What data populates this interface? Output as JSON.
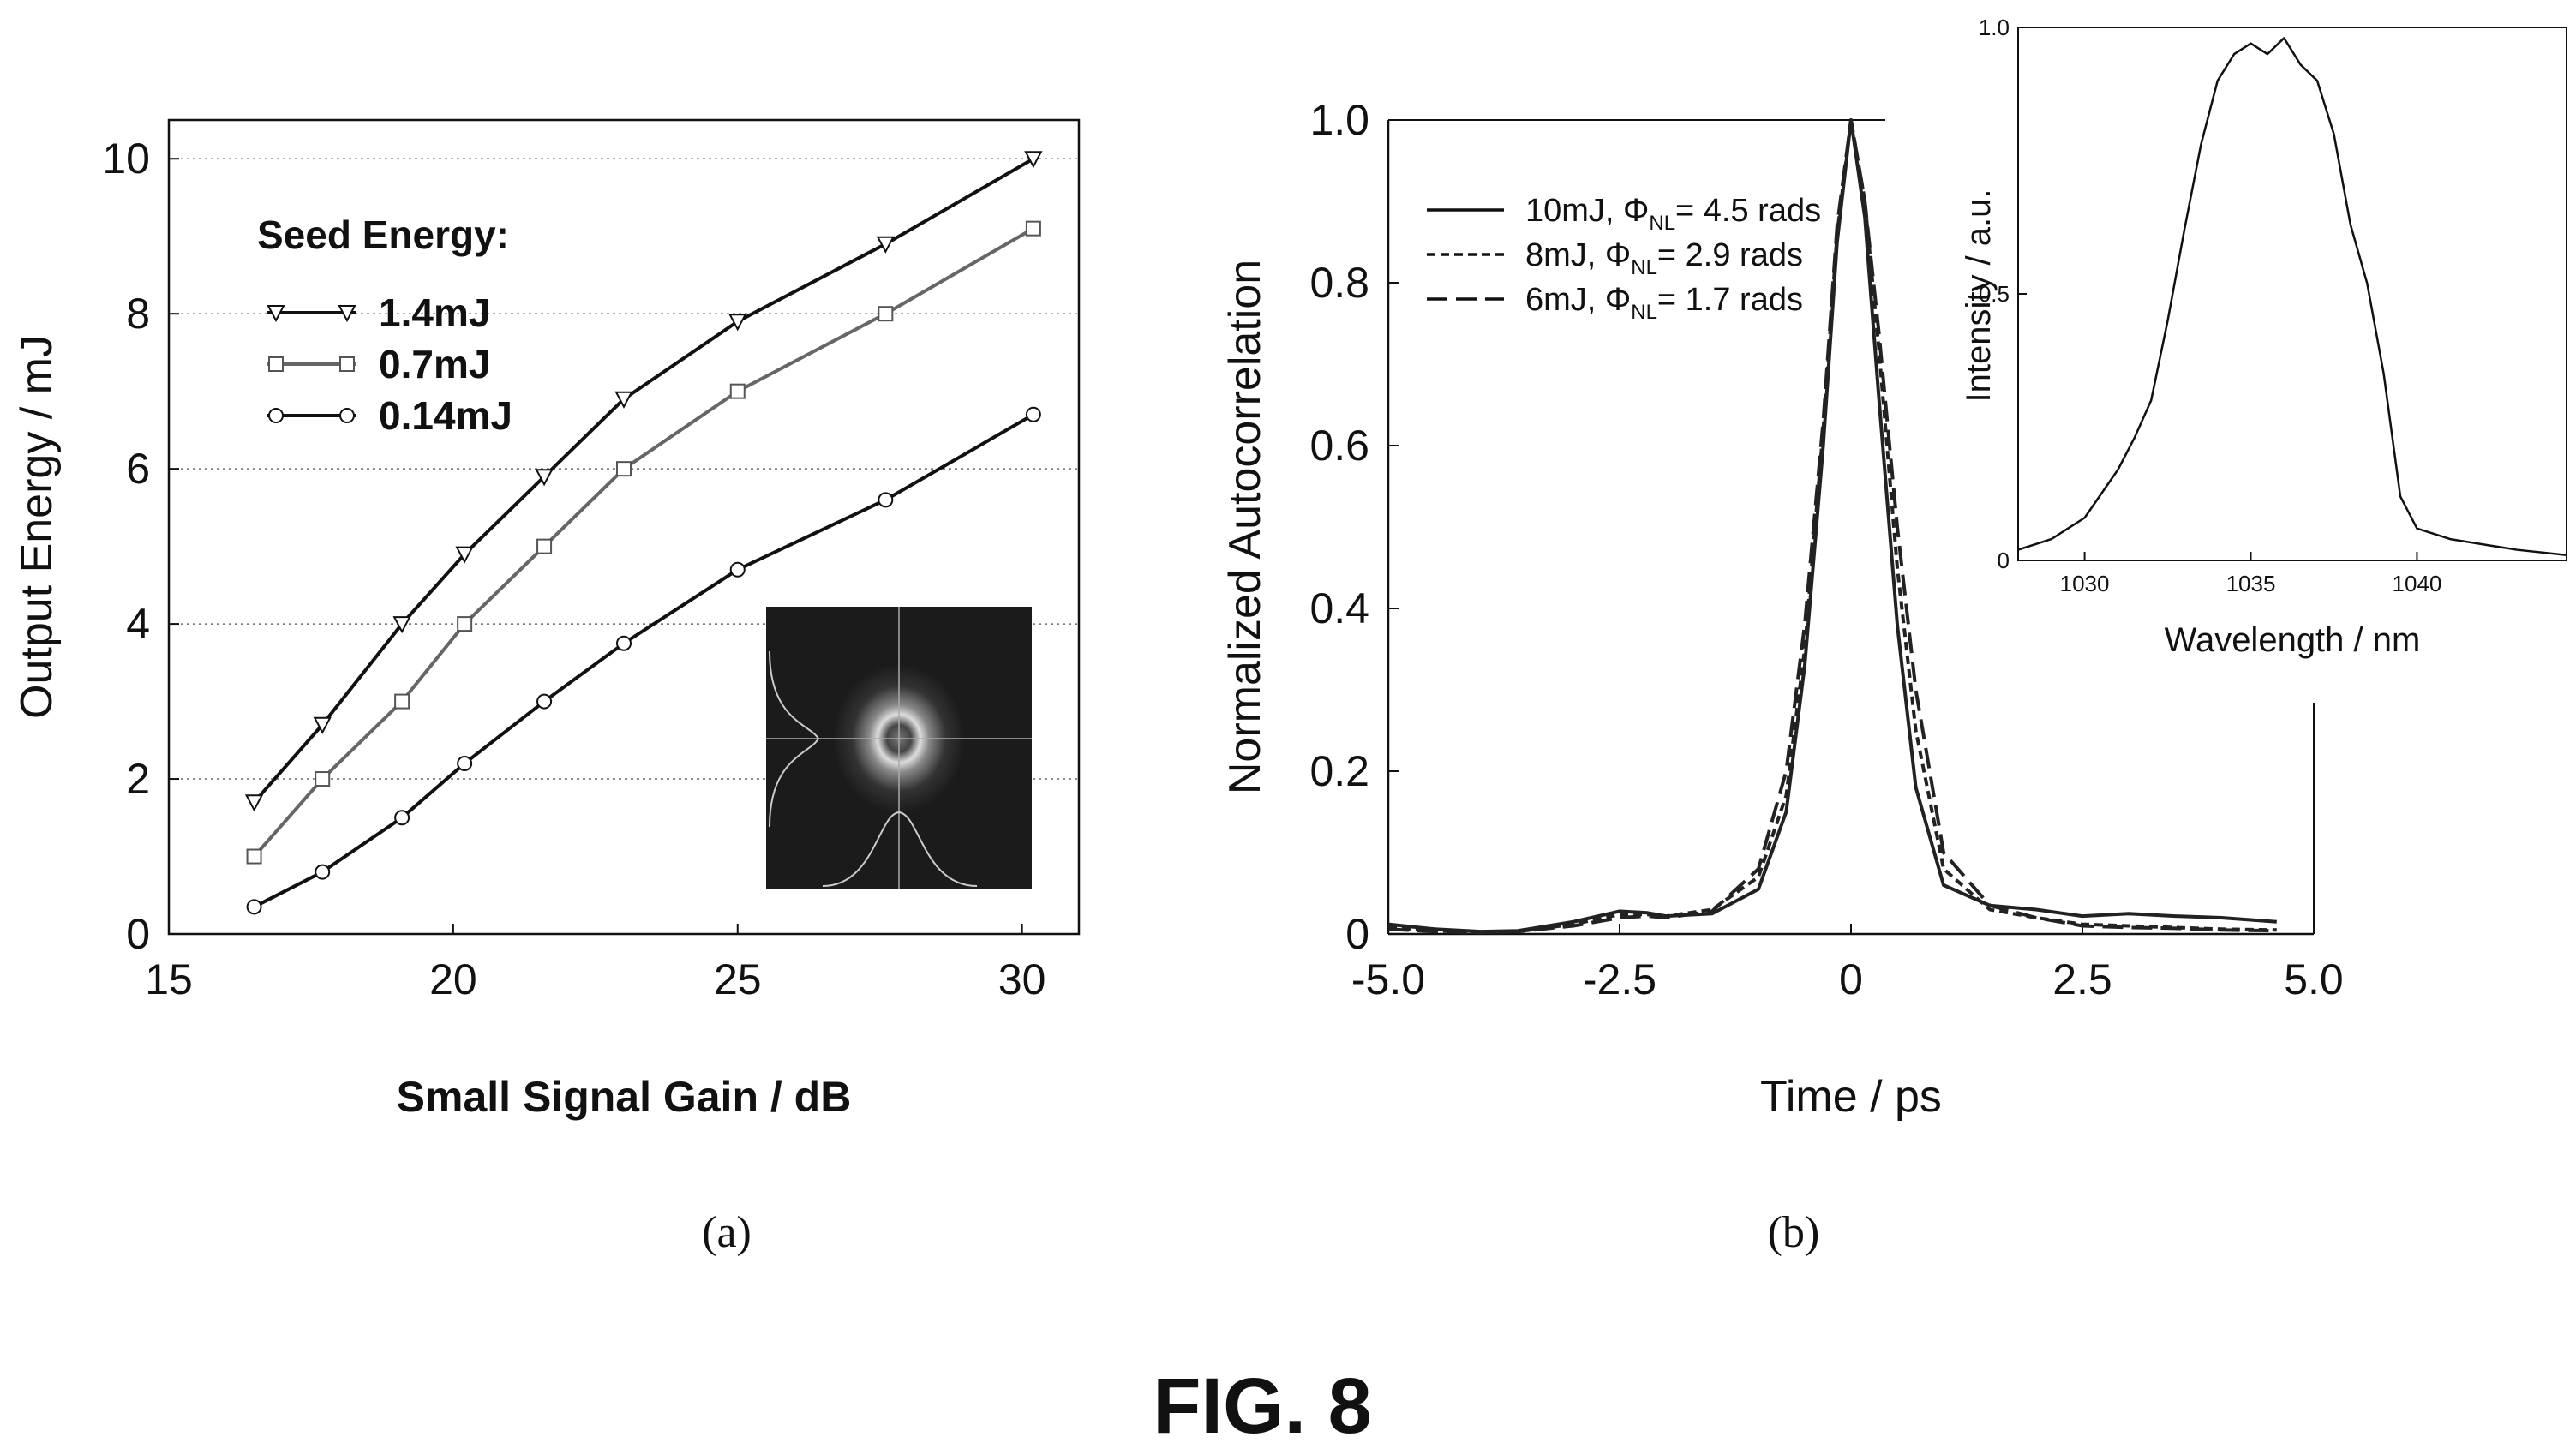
{
  "figure_title": "FIG. 8",
  "captions": {
    "a": "(a)",
    "b": "(b)"
  },
  "chart_data": [
    {
      "id": "a",
      "type": "line",
      "xlabel": "Small Signal Gain / dB",
      "ylabel": "Output Energy / mJ",
      "xlim": [
        15,
        31
      ],
      "ylim": [
        0,
        10.5
      ],
      "xticks": [
        15,
        20,
        25,
        30
      ],
      "yticks": [
        0,
        2,
        4,
        6,
        8,
        10
      ],
      "grid": true,
      "legend_title": "Seed Energy:",
      "legend_position": "top-left",
      "series": [
        {
          "name": "1.4mJ",
          "marker": "triangle-down",
          "color": "#111111",
          "x": [
            16.5,
            17.7,
            19.1,
            20.2,
            21.6,
            23.0,
            25.0,
            27.6,
            30.2
          ],
          "y": [
            1.7,
            2.7,
            4.0,
            4.9,
            5.9,
            6.9,
            7.9,
            8.9,
            10.0
          ]
        },
        {
          "name": "0.7mJ",
          "marker": "square",
          "color": "#666666",
          "x": [
            16.5,
            17.7,
            19.1,
            20.2,
            21.6,
            23.0,
            25.0,
            27.6,
            30.2
          ],
          "y": [
            1.0,
            2.0,
            3.0,
            4.0,
            5.0,
            6.0,
            7.0,
            8.0,
            9.1
          ]
        },
        {
          "name": "0.14mJ",
          "marker": "circle",
          "color": "#111111",
          "x": [
            16.5,
            17.7,
            19.1,
            20.2,
            21.6,
            23.0,
            25.0,
            27.6,
            30.2
          ],
          "y": [
            0.35,
            0.8,
            1.5,
            2.2,
            3.0,
            3.75,
            4.7,
            5.6,
            6.7
          ]
        }
      ],
      "inset": "beam-profile-image"
    },
    {
      "id": "b",
      "type": "line",
      "xlabel": "Time / ps",
      "ylabel": "Normalized Autocorrelation",
      "xlim": [
        -5.0,
        5.0
      ],
      "ylim": [
        0,
        1.0
      ],
      "xtick_labels": [
        "-5.0",
        "-2.5",
        "0",
        "2.5",
        "5.0"
      ],
      "ytick_labels": [
        "0",
        "0.2",
        "0.4",
        "0.6",
        "0.8",
        "1.0"
      ],
      "legend_position": "top-left",
      "series": [
        {
          "label_main": "10mJ, Φ",
          "label_sub": "NL",
          "label_rest": "= 4.5 rads",
          "dash": "solid",
          "x": [
            -5.0,
            -4.5,
            -4.0,
            -3.6,
            -3.0,
            -2.5,
            -2.2,
            -2.0,
            -1.5,
            -1.0,
            -0.7,
            -0.5,
            -0.3,
            -0.15,
            0,
            0.15,
            0.3,
            0.5,
            0.7,
            1.0,
            1.5,
            2.0,
            2.5,
            3.0,
            3.5,
            4.0,
            4.6
          ],
          "y": [
            0.012,
            0.006,
            0.003,
            0.004,
            0.015,
            0.028,
            0.026,
            0.022,
            0.025,
            0.055,
            0.15,
            0.33,
            0.6,
            0.85,
            1.0,
            0.88,
            0.66,
            0.38,
            0.18,
            0.06,
            0.035,
            0.03,
            0.022,
            0.025,
            0.022,
            0.02,
            0.015
          ]
        },
        {
          "label_main": "8mJ, Φ",
          "label_sub": "NL",
          "label_rest": "= 2.9 rads",
          "dash": "short",
          "x": [
            -5.0,
            -4.5,
            -4.0,
            -3.6,
            -3.0,
            -2.5,
            -2.2,
            -2.0,
            -1.5,
            -1.0,
            -0.7,
            -0.5,
            -0.3,
            -0.15,
            0,
            0.15,
            0.3,
            0.5,
            0.7,
            1.0,
            1.5,
            2.0,
            2.5,
            3.0,
            3.5,
            4.0,
            4.6
          ],
          "y": [
            0.008,
            0.004,
            0.002,
            0.003,
            0.012,
            0.024,
            0.024,
            0.022,
            0.03,
            0.07,
            0.17,
            0.35,
            0.62,
            0.86,
            1.0,
            0.9,
            0.72,
            0.45,
            0.25,
            0.08,
            0.03,
            0.02,
            0.012,
            0.01,
            0.008,
            0.006,
            0.005
          ]
        },
        {
          "label_main": "6mJ, Φ",
          "label_sub": "NL",
          "label_rest": "= 1.7 rads",
          "dash": "long",
          "x": [
            -5.0,
            -4.5,
            -4.0,
            -3.6,
            -3.0,
            -2.5,
            -2.2,
            -2.0,
            -1.5,
            -1.0,
            -0.7,
            -0.5,
            -0.3,
            -0.15,
            0,
            0.15,
            0.3,
            0.5,
            0.7,
            1.0,
            1.5,
            2.0,
            2.5,
            3.0,
            3.5,
            4.0,
            4.6
          ],
          "y": [
            0.006,
            0.003,
            0.002,
            0.003,
            0.01,
            0.02,
            0.022,
            0.02,
            0.028,
            0.08,
            0.2,
            0.38,
            0.63,
            0.87,
            1.0,
            0.9,
            0.74,
            0.5,
            0.3,
            0.1,
            0.035,
            0.02,
            0.01,
            0.008,
            0.007,
            0.005,
            0.004
          ]
        }
      ]
    },
    {
      "id": "b-inset",
      "type": "line",
      "xlabel": "Wavelength / nm",
      "ylabel": "Intensity / a.u.",
      "xlim": [
        1028,
        1044.5
      ],
      "ylim": [
        0,
        1.0
      ],
      "xticks": [
        1030,
        1035,
        1040
      ],
      "ytick_labels": [
        "0",
        "0.5",
        "1.0"
      ],
      "series": [
        {
          "name": "spectrum",
          "x": [
            1028,
            1029,
            1030,
            1031,
            1031.5,
            1032,
            1032.5,
            1033,
            1033.5,
            1034,
            1034.5,
            1035,
            1035.5,
            1036,
            1036.5,
            1037,
            1037.5,
            1038,
            1038.5,
            1039,
            1039.5,
            1040,
            1041,
            1042,
            1043,
            1044.5
          ],
          "y": [
            0.02,
            0.04,
            0.08,
            0.17,
            0.23,
            0.3,
            0.45,
            0.62,
            0.78,
            0.9,
            0.95,
            0.97,
            0.95,
            0.98,
            0.93,
            0.9,
            0.8,
            0.63,
            0.52,
            0.35,
            0.12,
            0.06,
            0.04,
            0.03,
            0.02,
            0.01
          ]
        }
      ]
    }
  ]
}
